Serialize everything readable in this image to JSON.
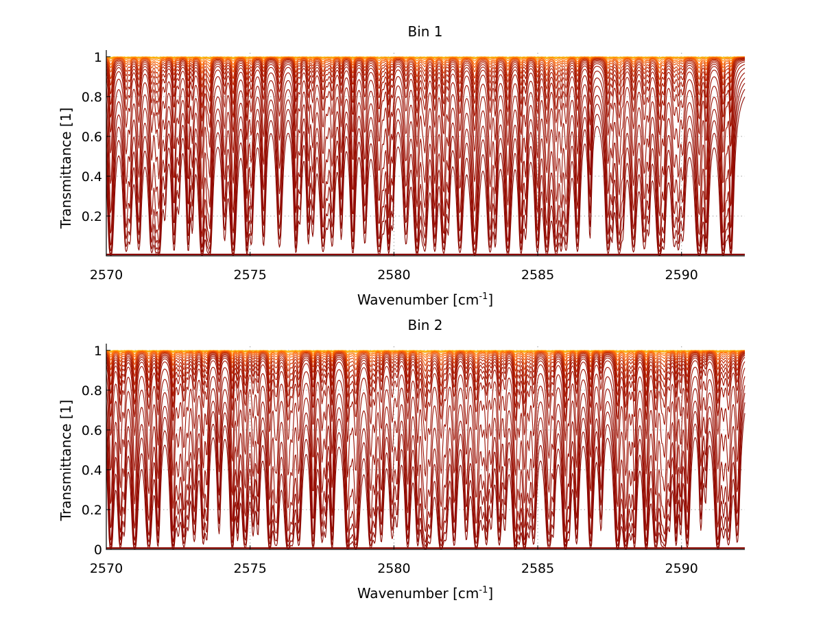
{
  "chart_data": [
    {
      "type": "line",
      "title": "Bin 1",
      "xlabel": "Wavenumber [cm",
      "xlabel_sup": "-1",
      "xlabel_end": "]",
      "ylabel": "Transmittance [1]",
      "xlim": [
        2570,
        2592.2
      ],
      "ylim": [
        0,
        1.02
      ],
      "xticks": [
        2570,
        2575,
        2580,
        2585,
        2590
      ],
      "xtick_labels": [
        "2570",
        "2575",
        "2580",
        "2585",
        "2590"
      ],
      "yticks": [
        0.2,
        0.4,
        0.6,
        0.8,
        1
      ],
      "ytick_labels": [
        "0.2",
        "0.4",
        "0.6",
        "0.8",
        "1"
      ],
      "grid": true,
      "levels": [
        1.0,
        0.998,
        0.995,
        0.99,
        0.98,
        0.965,
        0.95,
        0.93,
        0.9,
        0.87,
        0.83,
        0.78,
        0.72,
        0.65,
        0.55,
        0.4,
        0.25,
        0.14,
        0.07,
        0.035,
        0.015,
        0.005
      ],
      "colors": [
        "#7fd1a6",
        "#ffd23c",
        "#ffb400",
        "#ff9a00",
        "#ff8000",
        "#ff6a00",
        "#f25a00",
        "#e04800",
        "#cc3300",
        "#bb2400",
        "#b01d00",
        "#a81800",
        "#a31400",
        "#a01200",
        "#9e1000",
        "#9c0f00",
        "#9a0e00",
        "#990d00",
        "#970c00",
        "#940b00",
        "#900a00",
        "#8a0800"
      ]
    },
    {
      "type": "line",
      "title": "Bin 2",
      "xlabel": "Wavenumber [cm",
      "xlabel_sup": "-1",
      "xlabel_end": "]",
      "ylabel": "Transmittance [1]",
      "xlim": [
        2570,
        2592.2
      ],
      "ylim": [
        0,
        1.02
      ],
      "xticks": [
        2570,
        2575,
        2580,
        2585,
        2590
      ],
      "xtick_labels": [
        "2570",
        "2575",
        "2580",
        "2585",
        "2590"
      ],
      "yticks": [
        0,
        0.2,
        0.4,
        0.6,
        0.8,
        1
      ],
      "ytick_labels": [
        "0",
        "0.2",
        "0.4",
        "0.6",
        "0.8",
        "1"
      ],
      "grid": true,
      "levels": [
        1.0,
        0.998,
        0.995,
        0.99,
        0.98,
        0.97,
        0.955,
        0.935,
        0.91,
        0.88,
        0.84,
        0.8,
        0.75,
        0.69,
        0.6,
        0.43,
        0.26,
        0.13,
        0.06,
        0.03,
        0.012,
        0.004
      ],
      "colors": [
        "#7fd1a6",
        "#ffd23c",
        "#ffb400",
        "#ff9a00",
        "#ff8000",
        "#ff6a00",
        "#f25a00",
        "#e04800",
        "#cc3300",
        "#bb2400",
        "#b01d00",
        "#a81800",
        "#a31400",
        "#a01200",
        "#9e1000",
        "#9c0f00",
        "#9a0e00",
        "#990d00",
        "#970c00",
        "#940b00",
        "#900a00",
        "#8a0800"
      ]
    }
  ]
}
